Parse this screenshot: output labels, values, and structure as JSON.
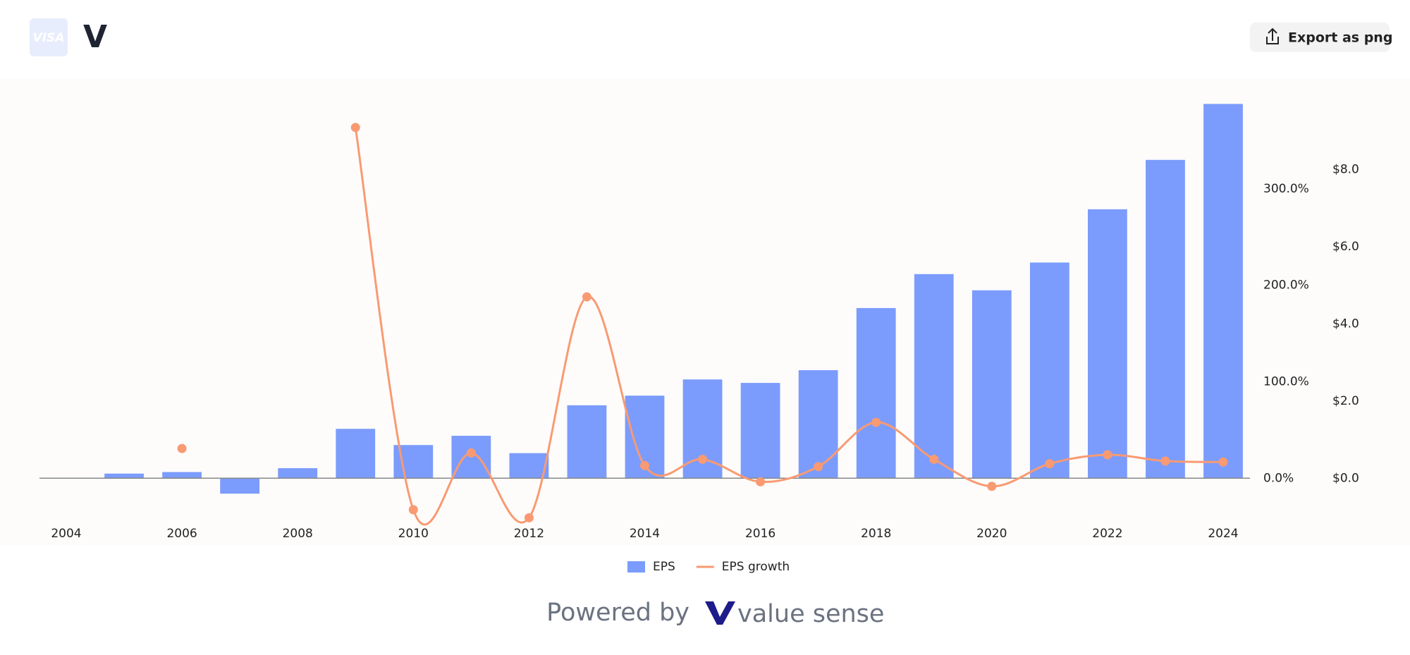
{
  "header": {
    "logo_text": "VISA",
    "ticker": "V",
    "export_button": "Export as png"
  },
  "chart_data": {
    "type": "bar-line",
    "categories": [
      "2004",
      null,
      "2006",
      null,
      "2008",
      null,
      "2010",
      null,
      "2012",
      null,
      "2014",
      null,
      "2016",
      null,
      "2018",
      null,
      "2020",
      null,
      "2022",
      null,
      "2024"
    ],
    "series": [
      {
        "name": "EPS",
        "type": "bar",
        "color": "#7b9cfc",
        "axis": "y",
        "values": [
          null,
          0.12,
          0.16,
          -0.4,
          0.26,
          1.28,
          0.86,
          1.1,
          0.65,
          1.89,
          2.14,
          2.56,
          2.47,
          2.8,
          4.41,
          5.29,
          4.87,
          5.59,
          6.97,
          8.25,
          9.7
        ]
      },
      {
        "name": "EPS growth",
        "type": "line",
        "color": "#f99a72",
        "axis": "y2",
        "values": [
          null,
          null,
          30.8,
          null,
          null,
          363.6,
          -32.7,
          26.2,
          -41.0,
          188.0,
          13.1,
          19.6,
          -3.7,
          12.1,
          57.9,
          19.6,
          -8.4,
          15.0,
          24.3,
          17.8,
          16.8
        ]
      }
    ],
    "ylim": [
      -1,
      10
    ],
    "yticks": [
      {
        "value": 0,
        "label": "$0.0"
      },
      {
        "value": 2,
        "label": "$2.0"
      },
      {
        "value": 4,
        "label": "$4.0"
      },
      {
        "value": 6,
        "label": "$6.0"
      },
      {
        "value": 8,
        "label": "$8.0"
      }
    ],
    "y2lim": [
      -40,
      400
    ],
    "y2ticks": [
      {
        "value": 0,
        "label": "0.0%"
      },
      {
        "value": 100,
        "label": "100.0%"
      },
      {
        "value": 200,
        "label": "200.0%"
      },
      {
        "value": 300,
        "label": "300.0%"
      }
    ],
    "grid": false,
    "legend": "bottom"
  },
  "footer": {
    "powered_by": "Powered by",
    "brand": "value sense"
  }
}
